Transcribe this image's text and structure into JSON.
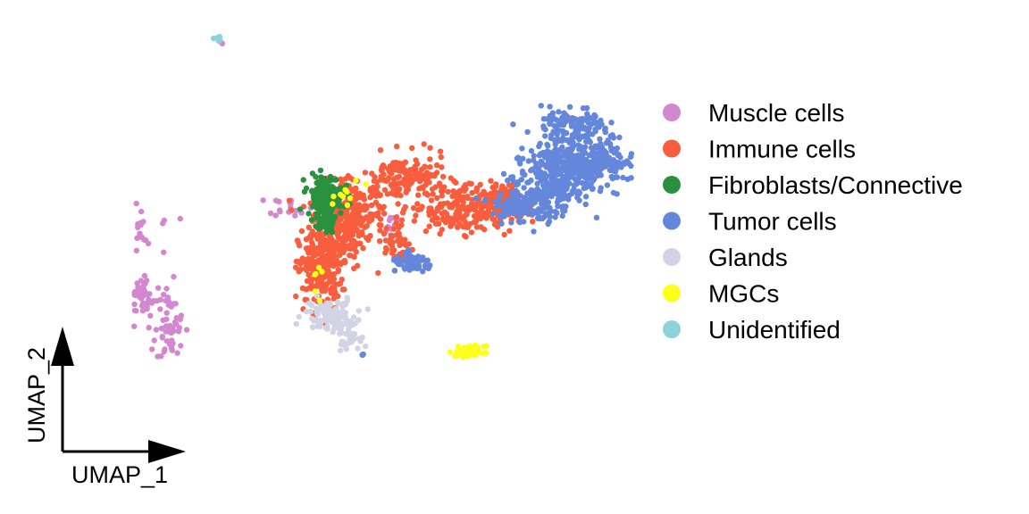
{
  "chart_data": {
    "type": "scatter",
    "title": "",
    "xlabel": "UMAP_1",
    "ylabel": "UMAP_2",
    "grid": false,
    "legend_position": "right",
    "series": [
      {
        "name": "Muscle cells",
        "color": "#D287CF",
        "clusters": [
          {
            "x": -9.2,
            "y": -0.6,
            "sx": 0.9,
            "sy": 0.6,
            "n": 450
          },
          {
            "x": -7.6,
            "y": 0.6,
            "sx": 0.6,
            "sy": 0.4,
            "n": 120
          },
          {
            "x": -6.9,
            "y": -1.4,
            "sx": 0.5,
            "sy": 0.3,
            "n": 90
          },
          {
            "x": -6.0,
            "y": -2.4,
            "sx": 0.2,
            "sy": 0.45,
            "n": 50
          },
          {
            "x": -2.6,
            "y": 1.3,
            "sx": 0.3,
            "sy": 0.15,
            "n": 20
          },
          {
            "x": -4.6,
            "y": 6.1,
            "sx": 0.05,
            "sy": 0.05,
            "n": 4
          },
          {
            "x": 0.2,
            "y": 0.7,
            "sx": 0.15,
            "sy": 0.25,
            "n": 14
          }
        ]
      },
      {
        "name": "Immune cells",
        "color": "#F85E3E",
        "clusters": [
          {
            "x": -1.8,
            "y": -0.6,
            "sx": 0.3,
            "sy": 0.6,
            "n": 220
          },
          {
            "x": -0.9,
            "y": 1.1,
            "sx": 0.45,
            "sy": 0.45,
            "n": 230
          },
          {
            "x": 0.6,
            "y": 2.1,
            "sx": 0.6,
            "sy": 0.35,
            "n": 160
          },
          {
            "x": 2.2,
            "y": 1.2,
            "sx": 0.7,
            "sy": 0.35,
            "n": 220
          },
          {
            "x": 3.3,
            "y": 1.4,
            "sx": 0.35,
            "sy": 0.3,
            "n": 90
          },
          {
            "x": 0.4,
            "y": 0.1,
            "sx": 0.2,
            "sy": 0.3,
            "n": 40
          },
          {
            "x": -1.3,
            "y": 0.4,
            "sx": 0.4,
            "sy": 0.5,
            "n": 120
          }
        ]
      },
      {
        "name": "Fibroblasts/Connective",
        "color": "#2A913F",
        "clusters": [
          {
            "x": -1.65,
            "y": 1.6,
            "sx": 0.25,
            "sy": 0.3,
            "n": 170
          },
          {
            "x": -1.6,
            "y": 0.9,
            "sx": 0.12,
            "sy": 0.25,
            "n": 40
          }
        ]
      },
      {
        "name": "Tumor cells",
        "color": "#6487DC",
        "clusters": [
          {
            "x": 4.7,
            "y": 2.1,
            "sx": 0.55,
            "sy": 0.45,
            "n": 260
          },
          {
            "x": 5.6,
            "y": 2.8,
            "sx": 0.55,
            "sy": 0.4,
            "n": 220
          },
          {
            "x": 3.9,
            "y": 1.3,
            "sx": 0.45,
            "sy": 0.25,
            "n": 140
          },
          {
            "x": 5.3,
            "y": 3.7,
            "sx": 0.45,
            "sy": 0.25,
            "n": 90
          },
          {
            "x": 6.3,
            "y": 2.5,
            "sx": 0.35,
            "sy": 0.3,
            "n": 70
          },
          {
            "x": 0.8,
            "y": -0.4,
            "sx": 0.3,
            "sy": 0.12,
            "n": 70
          },
          {
            "x": 8.0,
            "y": -0.8,
            "sx": 0.06,
            "sy": 0.05,
            "n": 8
          },
          {
            "x": -0.6,
            "y": -3.1,
            "sx": 0.02,
            "sy": 0.03,
            "n": 3
          },
          {
            "x": -7.9,
            "y": -0.6,
            "sx": 0.12,
            "sy": 0.15,
            "n": 14
          }
        ]
      },
      {
        "name": "Glands",
        "color": "#D3D3E6",
        "clusters": [
          {
            "x": -1.5,
            "y": -1.9,
            "sx": 0.35,
            "sy": 0.25,
            "n": 110
          },
          {
            "x": -1.0,
            "y": -2.5,
            "sx": 0.15,
            "sy": 0.2,
            "n": 35
          }
        ]
      },
      {
        "name": "MGCs",
        "color": "#FFFF19",
        "clusters": [
          {
            "x": 2.4,
            "y": -3.0,
            "sx": 0.2,
            "sy": 0.08,
            "n": 60
          },
          {
            "x": -1.1,
            "y": 1.6,
            "sx": 0.25,
            "sy": 0.25,
            "n": 10
          },
          {
            "x": -1.8,
            "y": -0.8,
            "sx": 0.1,
            "sy": 0.3,
            "n": 6
          }
        ]
      },
      {
        "name": "Unidentified",
        "color": "#8ED2DC",
        "clusters": [
          {
            "x": -4.65,
            "y": 6.2,
            "sx": 0.05,
            "sy": 0.05,
            "n": 6
          }
        ]
      }
    ]
  }
}
